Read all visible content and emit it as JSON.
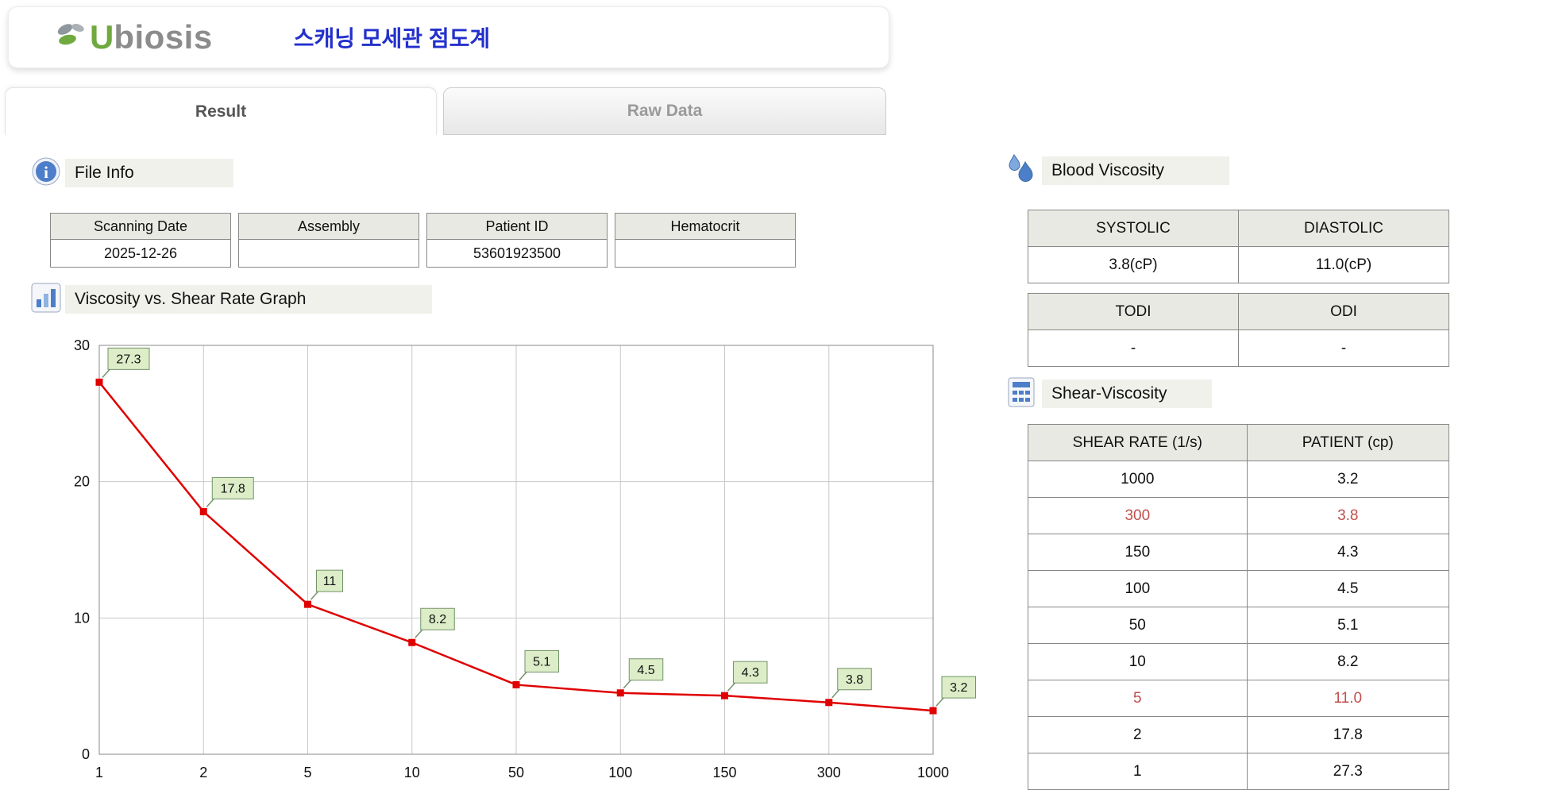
{
  "header": {
    "logo_text_u": "U",
    "logo_text_rest": "biosis",
    "title_korean": "스캐닝 모세관 점도계"
  },
  "tabs": [
    {
      "label": "Result",
      "active": true
    },
    {
      "label": "Raw Data",
      "active": false
    }
  ],
  "file_info": {
    "section_label": "File Info",
    "columns": [
      {
        "header": "Scanning Date",
        "value": "2025-12-26"
      },
      {
        "header": "Assembly",
        "value": ""
      },
      {
        "header": "Patient ID",
        "value": "53601923500"
      },
      {
        "header": "Hematocrit",
        "value": ""
      }
    ]
  },
  "graph_section": {
    "label": "Viscosity vs. Shear Rate Graph"
  },
  "chart_data": {
    "type": "line",
    "title": "Viscosity vs. Shear Rate Graph",
    "xlabel": "",
    "ylabel": "",
    "x_categories": [
      "1",
      "2",
      "5",
      "10",
      "50",
      "100",
      "150",
      "300",
      "1000"
    ],
    "values": [
      27.3,
      17.8,
      11,
      8.2,
      5.1,
      4.5,
      4.3,
      3.8,
      3.2
    ],
    "point_labels": [
      "27.3",
      "17.8",
      "11",
      "8.2",
      "5.1",
      "4.5",
      "4.3",
      "3.8",
      "3.2"
    ],
    "ylim": [
      0,
      30
    ],
    "yticks": [
      0,
      10,
      20,
      30
    ],
    "grid": true,
    "x_axis_note": "equally spaced categorical ticks (log-style shear rates)",
    "line_color": "#e00000",
    "marker": "square",
    "label_box_fill": "#dcedc8",
    "label_box_border": "#74936a"
  },
  "blood_viscosity": {
    "section_label": "Blood Viscosity",
    "table1": {
      "headers": [
        "SYSTOLIC",
        "DIASTOLIC"
      ],
      "values": [
        "3.8(cP)",
        "11.0(cP)"
      ]
    },
    "table2": {
      "headers": [
        "TODI",
        "ODI"
      ],
      "values": [
        "-",
        "-"
      ]
    }
  },
  "shear_viscosity": {
    "section_label": "Shear-Viscosity",
    "headers": [
      "SHEAR RATE (1/s)",
      "PATIENT (cp)"
    ],
    "highlight_color": "#c0504d",
    "rows": [
      {
        "shear": "1000",
        "patient": "3.2",
        "highlight": false
      },
      {
        "shear": "300",
        "patient": "3.8",
        "highlight": true
      },
      {
        "shear": "150",
        "patient": "4.3",
        "highlight": false
      },
      {
        "shear": "100",
        "patient": "4.5",
        "highlight": false
      },
      {
        "shear": "50",
        "patient": "5.1",
        "highlight": false
      },
      {
        "shear": "10",
        "patient": "8.2",
        "highlight": false
      },
      {
        "shear": "5",
        "patient": "11.0",
        "highlight": true
      },
      {
        "shear": "2",
        "patient": "17.8",
        "highlight": false
      },
      {
        "shear": "1",
        "patient": "27.3",
        "highlight": false
      }
    ]
  }
}
